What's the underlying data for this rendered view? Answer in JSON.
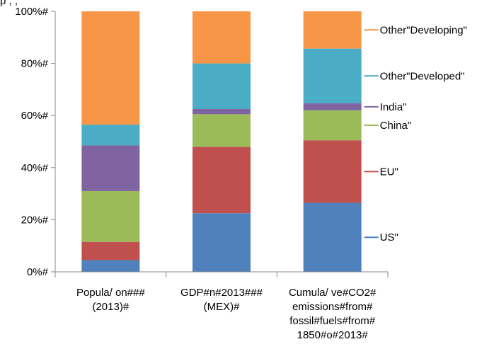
{
  "title": "p  ,   ,",
  "chart_data": {
    "type": "bar",
    "stacked": true,
    "categories": [
      [
        "Popula/ on###",
        "(2013)#"
      ],
      [
        "GDP#n#2013###",
        "(MEX)#"
      ],
      [
        "Cumula/ ve#CO2#",
        "emissions#from#",
        "fossil#fuels#from#",
        "1850#o#2013#"
      ]
    ],
    "series": [
      {
        "name": "US\"",
        "color": "#4f81bd",
        "values": [
          4.5,
          22.5,
          26.5
        ]
      },
      {
        "name": "EU\"",
        "color": "#c0504d",
        "values": [
          7.0,
          25.5,
          24.0
        ]
      },
      {
        "name": "China\"",
        "color": "#9bbb59",
        "values": [
          19.5,
          12.5,
          11.5
        ]
      },
      {
        "name": "India\"",
        "color": "#8064a2",
        "values": [
          17.5,
          2.0,
          2.7
        ]
      },
      {
        "name": "Other\"Developed\"",
        "color": "#4bacc6",
        "values": [
          8.0,
          17.5,
          21.0
        ]
      },
      {
        "name": "Other\"Developing\"",
        "color": "#f79646",
        "values": [
          43.5,
          20.0,
          14.3
        ]
      }
    ],
    "yticks": [
      "0%#",
      "20%#",
      "40%#",
      "60%#",
      "80%#",
      "100%#"
    ],
    "ylim": [
      0,
      100
    ],
    "grid": false,
    "legend": "right"
  }
}
